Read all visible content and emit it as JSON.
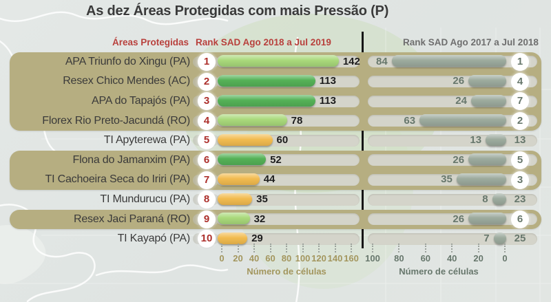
{
  "title": "As dez Áreas Protegidas com mais Pressão (P)",
  "header": {
    "areas": "Áreas Protegidas",
    "left_rank": "Rank SAD Ago 2018 a Jul 2019",
    "right_rank": "Rank SAD Ago 2017 a Jul 2018"
  },
  "chart_data": {
    "type": "bar",
    "variant": "paired-horizontal-diverging",
    "title": "As dez Áreas Protegidas com mais Pressão (P)",
    "left_axis": {
      "label": "Número de células",
      "period": "Rank SAD Ago 2018 a Jul 2019",
      "ticks": [
        0,
        20,
        40,
        60,
        80,
        100,
        120,
        140,
        160
      ],
      "range": [
        0,
        170
      ],
      "direction": "left-to-right"
    },
    "right_axis": {
      "label": "Número de células",
      "period": "Rank SAD Ago 2017 a Jul 2018",
      "ticks": [
        100,
        80,
        60,
        40,
        20,
        0
      ],
      "range": [
        0,
        105
      ],
      "direction": "right-to-left"
    },
    "rows": [
      {
        "area": "APA Triunfo do Xingu (PA)",
        "rank_2019": 1,
        "cells_2019": 142,
        "bar_color": "light-green",
        "cells_2018": 84,
        "rank_2018": 1,
        "banded": true
      },
      {
        "area": "Resex Chico Mendes (AC)",
        "rank_2019": 2,
        "cells_2019": 113,
        "bar_color": "green",
        "cells_2018": 26,
        "rank_2018": 4,
        "banded": true
      },
      {
        "area": "APA do Tapajós (PA)",
        "rank_2019": 3,
        "cells_2019": 113,
        "bar_color": "green",
        "cells_2018": 24,
        "rank_2018": 7,
        "banded": true
      },
      {
        "area": "Florex Rio Preto-Jacundá (RO)",
        "rank_2019": 4,
        "cells_2019": 78,
        "bar_color": "light-green",
        "cells_2018": 63,
        "rank_2018": 2,
        "banded": true
      },
      {
        "area": "TI Apyterewa (PA)",
        "rank_2019": 5,
        "cells_2019": 60,
        "bar_color": "orange",
        "cells_2018": 13,
        "rank_2018": 13,
        "banded": false
      },
      {
        "area": "Flona do Jamanxim (PA)",
        "rank_2019": 6,
        "cells_2019": 52,
        "bar_color": "green",
        "cells_2018": 26,
        "rank_2018": 5,
        "banded": true
      },
      {
        "area": "TI Cachoeira Seca do Iriri (PA)",
        "rank_2019": 7,
        "cells_2019": 44,
        "bar_color": "orange",
        "cells_2018": 35,
        "rank_2018": 3,
        "banded": true
      },
      {
        "area": "TI Mundurucu (PA)",
        "rank_2019": 8,
        "cells_2019": 35,
        "bar_color": "orange",
        "cells_2018": 8,
        "rank_2018": 23,
        "banded": false
      },
      {
        "area": "Resex Jaci Paraná (RO)",
        "rank_2019": 9,
        "cells_2019": 32,
        "bar_color": "light-green",
        "cells_2018": 26,
        "rank_2018": 6,
        "banded": true
      },
      {
        "area": "TI Kayapó (PA)",
        "rank_2019": 10,
        "cells_2019": 29,
        "bar_color": "orange",
        "cells_2018": 7,
        "rank_2018": 25,
        "banded": false
      }
    ],
    "colors": {
      "light_green": "#a9d97b",
      "green": "#55b257",
      "orange": "#f2bb50",
      "sage_bar": "#9dab9e",
      "band": "#b6ae81",
      "track": "#d4d4ca",
      "rank_red": "#ac2f2b",
      "header_red": "#b8403c",
      "right_text": "#67776c",
      "left_axis_text": "#a3965e",
      "title_text": "#3a3a3a",
      "divider": "#151515"
    }
  }
}
